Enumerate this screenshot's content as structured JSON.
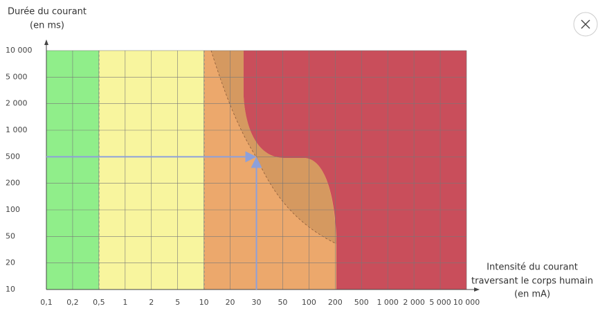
{
  "chart_data": {
    "type": "zone",
    "y_title": [
      "Durée du courant",
      "(en ms)"
    ],
    "x_title": [
      "Intensité du courant",
      "traversant le corps humain",
      "(en mA)"
    ],
    "xticks": [
      {
        "value": 0.1,
        "label": "0,1"
      },
      {
        "value": 0.2,
        "label": "0,2"
      },
      {
        "value": 0.5,
        "label": "0,5"
      },
      1,
      2,
      5,
      10,
      20,
      30,
      50,
      100,
      200,
      500,
      {
        "value": 1000,
        "label": "1 000"
      },
      {
        "value": 2000,
        "label": "2 000"
      },
      {
        "value": 5000,
        "label": "5 000"
      },
      {
        "value": 10000,
        "label": "10 000"
      }
    ],
    "yticks": [
      10,
      20,
      50,
      100,
      200,
      500,
      {
        "value": 1000,
        "label": "1 000"
      },
      {
        "value": 2000,
        "label": "2 000"
      },
      {
        "value": 5000,
        "label": "5 000"
      },
      {
        "value": 10000,
        "label": "10 000"
      }
    ],
    "xlim": [
      0.1,
      10000
    ],
    "ylim": [
      10,
      10000
    ],
    "point": {
      "x": 30,
      "y": 500
    },
    "point_color": "#8da0db",
    "grid": true
  }
}
